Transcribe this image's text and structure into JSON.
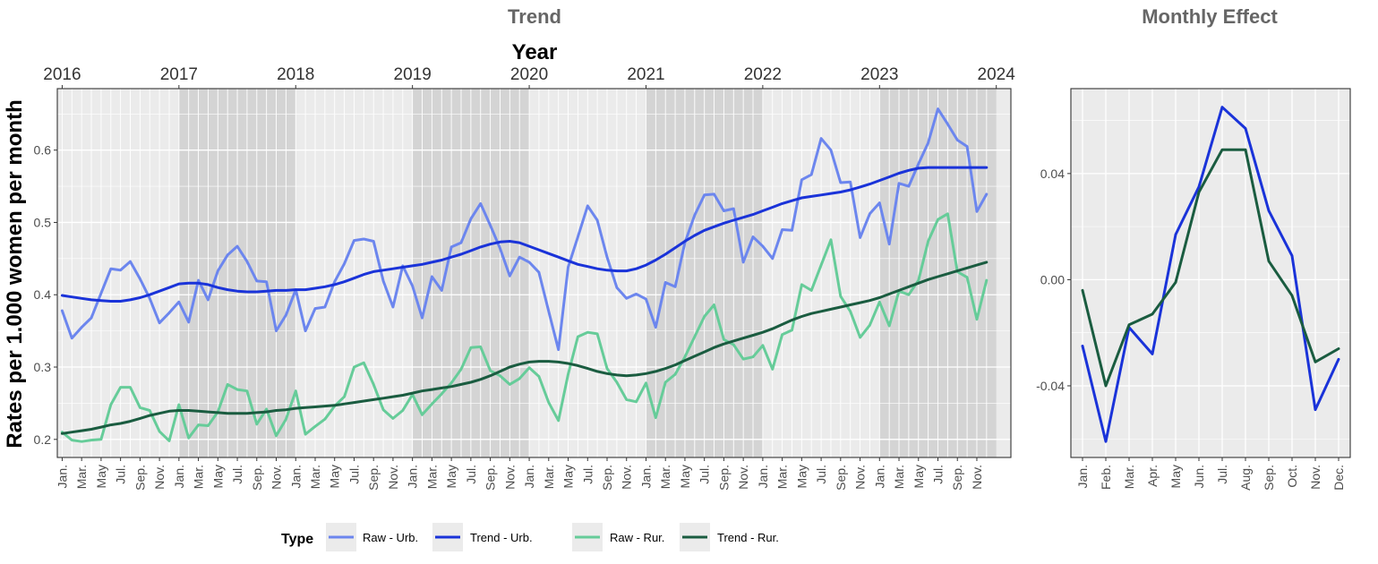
{
  "chart_data": [
    {
      "type": "line",
      "title": "Trend",
      "xlabel_top": "Year",
      "ylabel": "Rates per 1.000 women per month",
      "year_labels": [
        "2016",
        "2017",
        "2018",
        "2019",
        "2020",
        "2021",
        "2022",
        "2023",
        "2024"
      ],
      "month_labels": [
        "Jan.",
        "Mar.",
        "May",
        "Jul.",
        "Sep.",
        "Nov."
      ],
      "y_ticks": [
        0.2,
        0.3,
        0.4,
        0.5,
        0.6
      ],
      "y_tick_labels": [
        "0.2",
        "0.3",
        "0.4",
        "0.5",
        "0.6"
      ],
      "ylim": [
        0.175,
        0.685
      ],
      "x_range_months": [
        -0.5,
        97.5
      ],
      "grid": true,
      "shaded_years": [
        "2017",
        "2019",
        "2021",
        "2023"
      ],
      "series": [
        {
          "name": "Raw - Urb.",
          "color": "#6c86ee",
          "values": [
            0.378,
            0.34,
            0.355,
            0.368,
            0.402,
            0.436,
            0.434,
            0.446,
            0.422,
            0.395,
            0.361,
            0.375,
            0.39,
            0.362,
            0.42,
            0.393,
            0.433,
            0.455,
            0.467,
            0.446,
            0.419,
            0.418,
            0.35,
            0.372,
            0.407,
            0.35,
            0.381,
            0.383,
            0.418,
            0.443,
            0.475,
            0.477,
            0.474,
            0.419,
            0.383,
            0.44,
            0.412,
            0.368,
            0.425,
            0.406,
            0.466,
            0.472,
            0.505,
            0.526,
            0.496,
            0.464,
            0.426,
            0.452,
            0.445,
            0.431,
            0.377,
            0.324,
            0.438,
            0.48,
            0.523,
            0.503,
            0.452,
            0.41,
            0.395,
            0.401,
            0.394,
            0.355,
            0.417,
            0.411,
            0.472,
            0.51,
            0.538,
            0.539,
            0.516,
            0.519,
            0.445,
            0.48,
            0.467,
            0.45,
            0.49,
            0.489,
            0.559,
            0.566,
            0.616,
            0.6,
            0.555,
            0.556,
            0.479,
            0.512,
            0.527,
            0.47,
            0.554,
            0.55,
            0.581,
            0.61,
            0.657,
            0.636,
            0.614,
            0.605,
            0.515,
            0.539
          ]
        },
        {
          "name": "Trend - Urb.",
          "color": "#1a33d9",
          "values": [
            0.399,
            0.397,
            0.395,
            0.393,
            0.392,
            0.391,
            0.391,
            0.393,
            0.396,
            0.4,
            0.405,
            0.41,
            0.415,
            0.416,
            0.416,
            0.414,
            0.41,
            0.407,
            0.405,
            0.404,
            0.404,
            0.405,
            0.406,
            0.406,
            0.407,
            0.407,
            0.409,
            0.411,
            0.414,
            0.418,
            0.423,
            0.428,
            0.432,
            0.434,
            0.436,
            0.438,
            0.44,
            0.442,
            0.445,
            0.448,
            0.452,
            0.456,
            0.461,
            0.466,
            0.47,
            0.473,
            0.474,
            0.472,
            0.467,
            0.462,
            0.457,
            0.452,
            0.447,
            0.442,
            0.439,
            0.436,
            0.434,
            0.433,
            0.433,
            0.436,
            0.441,
            0.448,
            0.456,
            0.465,
            0.474,
            0.482,
            0.489,
            0.494,
            0.499,
            0.503,
            0.507,
            0.511,
            0.516,
            0.521,
            0.526,
            0.53,
            0.534,
            0.536,
            0.538,
            0.54,
            0.542,
            0.545,
            0.549,
            0.553,
            0.558,
            0.563,
            0.568,
            0.572,
            0.575,
            0.576,
            0.576,
            0.576,
            0.576,
            0.576,
            0.576,
            0.576
          ]
        },
        {
          "name": "Raw - Rur.",
          "color": "#66cc99",
          "values": [
            0.21,
            0.199,
            0.197,
            0.199,
            0.2,
            0.248,
            0.272,
            0.272,
            0.244,
            0.24,
            0.211,
            0.198,
            0.248,
            0.202,
            0.22,
            0.219,
            0.238,
            0.276,
            0.269,
            0.267,
            0.221,
            0.242,
            0.205,
            0.228,
            0.267,
            0.207,
            0.218,
            0.228,
            0.246,
            0.259,
            0.3,
            0.306,
            0.276,
            0.241,
            0.229,
            0.24,
            0.262,
            0.234,
            0.249,
            0.263,
            0.278,
            0.297,
            0.327,
            0.328,
            0.295,
            0.288,
            0.276,
            0.284,
            0.299,
            0.287,
            0.251,
            0.226,
            0.29,
            0.342,
            0.348,
            0.346,
            0.298,
            0.279,
            0.255,
            0.252,
            0.278,
            0.23,
            0.279,
            0.29,
            0.314,
            0.342,
            0.37,
            0.386,
            0.338,
            0.331,
            0.311,
            0.314,
            0.33,
            0.297,
            0.345,
            0.351,
            0.414,
            0.406,
            0.441,
            0.476,
            0.398,
            0.377,
            0.341,
            0.358,
            0.39,
            0.357,
            0.405,
            0.4,
            0.42,
            0.474,
            0.504,
            0.512,
            0.432,
            0.424,
            0.366,
            0.42
          ]
        },
        {
          "name": "Trend - Rur.",
          "color": "#1a5c40",
          "values": [
            0.208,
            0.21,
            0.212,
            0.214,
            0.217,
            0.22,
            0.222,
            0.225,
            0.229,
            0.233,
            0.236,
            0.239,
            0.24,
            0.24,
            0.239,
            0.238,
            0.237,
            0.236,
            0.236,
            0.236,
            0.237,
            0.238,
            0.24,
            0.241,
            0.243,
            0.244,
            0.245,
            0.246,
            0.247,
            0.249,
            0.251,
            0.253,
            0.255,
            0.257,
            0.259,
            0.261,
            0.264,
            0.267,
            0.269,
            0.271,
            0.273,
            0.276,
            0.279,
            0.283,
            0.288,
            0.294,
            0.3,
            0.304,
            0.307,
            0.308,
            0.308,
            0.307,
            0.305,
            0.302,
            0.298,
            0.294,
            0.291,
            0.289,
            0.288,
            0.289,
            0.291,
            0.294,
            0.298,
            0.303,
            0.309,
            0.315,
            0.321,
            0.327,
            0.332,
            0.336,
            0.34,
            0.344,
            0.348,
            0.353,
            0.359,
            0.365,
            0.37,
            0.374,
            0.377,
            0.38,
            0.383,
            0.386,
            0.389,
            0.392,
            0.396,
            0.401,
            0.406,
            0.411,
            0.416,
            0.421,
            0.425,
            0.429,
            0.433,
            0.437,
            0.441,
            0.445
          ]
        }
      ]
    },
    {
      "type": "line",
      "title": "Monthly Effect",
      "categories": [
        "Jan.",
        "Feb.",
        "Mar.",
        "Apr.",
        "May",
        "Jun.",
        "Jul.",
        "Aug.",
        "Sep.",
        "Oct.",
        "Nov.",
        "Dec."
      ],
      "y_ticks": [
        -0.04,
        0.0,
        0.04
      ],
      "y_tick_labels": [
        "-0.04",
        "0.00",
        "0.04"
      ],
      "ylim": [
        -0.067,
        0.072
      ],
      "grid": true,
      "series": [
        {
          "name": "Trend - Urb.",
          "color": "#1a33d9",
          "values": [
            -0.025,
            -0.061,
            -0.018,
            -0.028,
            0.017,
            0.035,
            0.065,
            0.057,
            0.026,
            0.009,
            -0.049,
            -0.03
          ]
        },
        {
          "name": "Trend - Rur.",
          "color": "#1a5c40",
          "values": [
            -0.004,
            -0.04,
            -0.017,
            -0.013,
            -0.001,
            0.033,
            0.049,
            0.049,
            0.007,
            -0.006,
            -0.031,
            -0.026
          ]
        }
      ]
    }
  ],
  "legend": {
    "title": "Type",
    "position": "bottom",
    "items": [
      {
        "label": "Raw - Urb.",
        "color": "#6c86ee"
      },
      {
        "label": "Trend - Urb.",
        "color": "#1a33d9"
      },
      {
        "label": "Raw - Rur.",
        "color": "#66cc99"
      },
      {
        "label": "Trend - Rur.",
        "color": "#1a5c40"
      }
    ]
  }
}
